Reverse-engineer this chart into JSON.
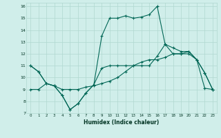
{
  "xlabel": "Humidex (Indice chaleur)",
  "xlim": [
    -0.5,
    23.5
  ],
  "ylim": [
    7,
    16.3
  ],
  "yticks": [
    7,
    8,
    9,
    10,
    11,
    12,
    13,
    14,
    15,
    16
  ],
  "xticks": [
    0,
    1,
    2,
    3,
    4,
    5,
    6,
    7,
    8,
    9,
    10,
    11,
    12,
    13,
    14,
    15,
    16,
    17,
    18,
    19,
    20,
    21,
    22,
    23
  ],
  "background_color": "#d0eeea",
  "grid_color": "#b0d8d0",
  "line_color": "#006655",
  "series": [
    {
      "x": [
        0,
        1,
        2,
        3,
        4,
        5,
        6,
        7,
        8,
        9,
        10,
        11,
        12,
        13,
        14,
        15,
        16,
        17,
        18,
        19,
        20,
        21,
        22,
        23
      ],
      "y": [
        11.0,
        10.5,
        9.5,
        9.3,
        8.5,
        7.3,
        7.8,
        8.7,
        9.4,
        10.8,
        11.0,
        11.0,
        11.0,
        11.0,
        11.0,
        11.0,
        11.8,
        12.8,
        12.0,
        12.0,
        12.2,
        11.5,
        10.4,
        9.0
      ]
    },
    {
      "x": [
        0,
        1,
        2,
        3,
        4,
        5,
        6,
        7,
        8,
        9,
        10,
        11,
        12,
        13,
        14,
        15,
        16,
        17,
        18,
        19,
        20,
        21,
        22,
        23
      ],
      "y": [
        11.0,
        10.5,
        9.5,
        9.3,
        8.5,
        7.3,
        7.8,
        8.7,
        9.4,
        13.5,
        15.0,
        15.0,
        15.2,
        15.0,
        15.1,
        15.3,
        16.0,
        12.8,
        12.5,
        12.2,
        12.2,
        11.5,
        10.4,
        9.0
      ]
    },
    {
      "x": [
        0,
        1,
        2,
        3,
        4,
        5,
        6,
        7,
        8,
        9,
        10,
        11,
        12,
        13,
        14,
        15,
        16,
        17,
        18,
        19,
        20,
        21,
        22,
        23
      ],
      "y": [
        9.0,
        9.0,
        9.5,
        9.3,
        9.0,
        9.0,
        9.0,
        9.2,
        9.3,
        9.5,
        9.7,
        10.0,
        10.5,
        11.0,
        11.3,
        11.5,
        11.5,
        11.7,
        12.0,
        12.0,
        12.0,
        11.5,
        9.1,
        9.0
      ]
    }
  ]
}
